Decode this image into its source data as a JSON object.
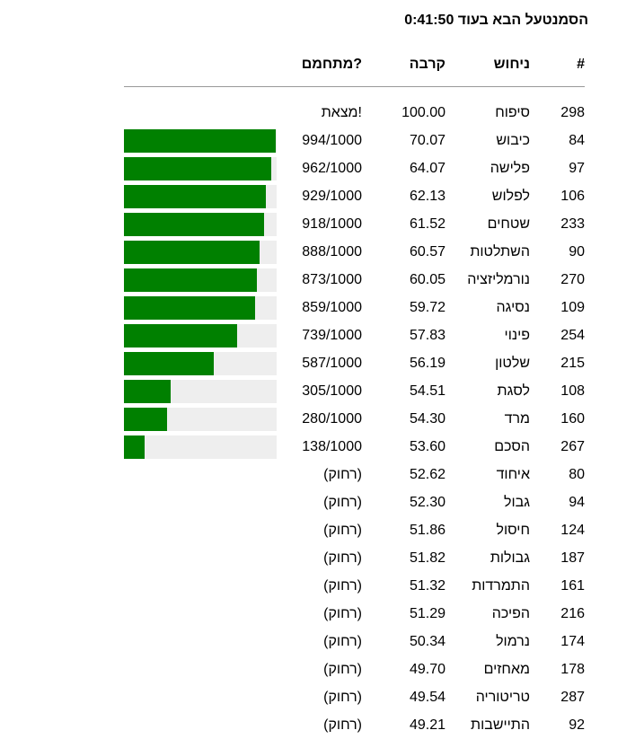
{
  "header": {
    "countdown_label": "הסמנטעל הבא בעוד",
    "countdown_time": "0:41:50"
  },
  "columns": {
    "num": "#",
    "guess": "ניחוש",
    "proximity": "קרבה",
    "temperature": "מתחמם?"
  },
  "rows": [
    {
      "num": "298",
      "guess": "סיפוח",
      "proximity": "100.00",
      "temp": "מצאת!",
      "progress": null
    },
    {
      "num": "84",
      "guess": "כיבוש",
      "proximity": "70.07",
      "temp": "994/1000",
      "progress": 0.994
    },
    {
      "num": "97",
      "guess": "פלישה",
      "proximity": "64.07",
      "temp": "962/1000",
      "progress": 0.962
    },
    {
      "num": "106",
      "guess": "לפלוש",
      "proximity": "62.13",
      "temp": "929/1000",
      "progress": 0.929
    },
    {
      "num": "233",
      "guess": "שטחים",
      "proximity": "61.52",
      "temp": "918/1000",
      "progress": 0.918
    },
    {
      "num": "90",
      "guess": "השתלטות",
      "proximity": "60.57",
      "temp": "888/1000",
      "progress": 0.888
    },
    {
      "num": "270",
      "guess": "נורמליזציה",
      "proximity": "60.05",
      "temp": "873/1000",
      "progress": 0.873
    },
    {
      "num": "109",
      "guess": "נסיגה",
      "proximity": "59.72",
      "temp": "859/1000",
      "progress": 0.859
    },
    {
      "num": "254",
      "guess": "פינוי",
      "proximity": "57.83",
      "temp": "739/1000",
      "progress": 0.739
    },
    {
      "num": "215",
      "guess": "שלטון",
      "proximity": "56.19",
      "temp": "587/1000",
      "progress": 0.587
    },
    {
      "num": "108",
      "guess": "לסגת",
      "proximity": "54.51",
      "temp": "305/1000",
      "progress": 0.305
    },
    {
      "num": "160",
      "guess": "מרד",
      "proximity": "54.30",
      "temp": "280/1000",
      "progress": 0.28
    },
    {
      "num": "267",
      "guess": "הסכם",
      "proximity": "53.60",
      "temp": "138/1000",
      "progress": 0.138
    },
    {
      "num": "80",
      "guess": "איחוד",
      "proximity": "52.62",
      "temp": "(רחוק)",
      "progress": null
    },
    {
      "num": "94",
      "guess": "גבול",
      "proximity": "52.30",
      "temp": "(רחוק)",
      "progress": null
    },
    {
      "num": "124",
      "guess": "חיסול",
      "proximity": "51.86",
      "temp": "(רחוק)",
      "progress": null
    },
    {
      "num": "187",
      "guess": "גבולות",
      "proximity": "51.82",
      "temp": "(רחוק)",
      "progress": null
    },
    {
      "num": "161",
      "guess": "התמרדות",
      "proximity": "51.32",
      "temp": "(רחוק)",
      "progress": null
    },
    {
      "num": "216",
      "guess": "הפיכה",
      "proximity": "51.29",
      "temp": "(רחוק)",
      "progress": null
    },
    {
      "num": "174",
      "guess": "נרמול",
      "proximity": "50.34",
      "temp": "(רחוק)",
      "progress": null
    },
    {
      "num": "178",
      "guess": "מאחזים",
      "proximity": "49.70",
      "temp": "(רחוק)",
      "progress": null
    },
    {
      "num": "287",
      "guess": "טריטוריה",
      "proximity": "49.54",
      "temp": "(רחוק)",
      "progress": null
    },
    {
      "num": "92",
      "guess": "התיישבות",
      "proximity": "49.21",
      "temp": "(רחוק)",
      "progress": null
    }
  ],
  "colors": {
    "bar_fill": "#008000",
    "bar_track": "#eeeeee",
    "divider": "#999999"
  }
}
